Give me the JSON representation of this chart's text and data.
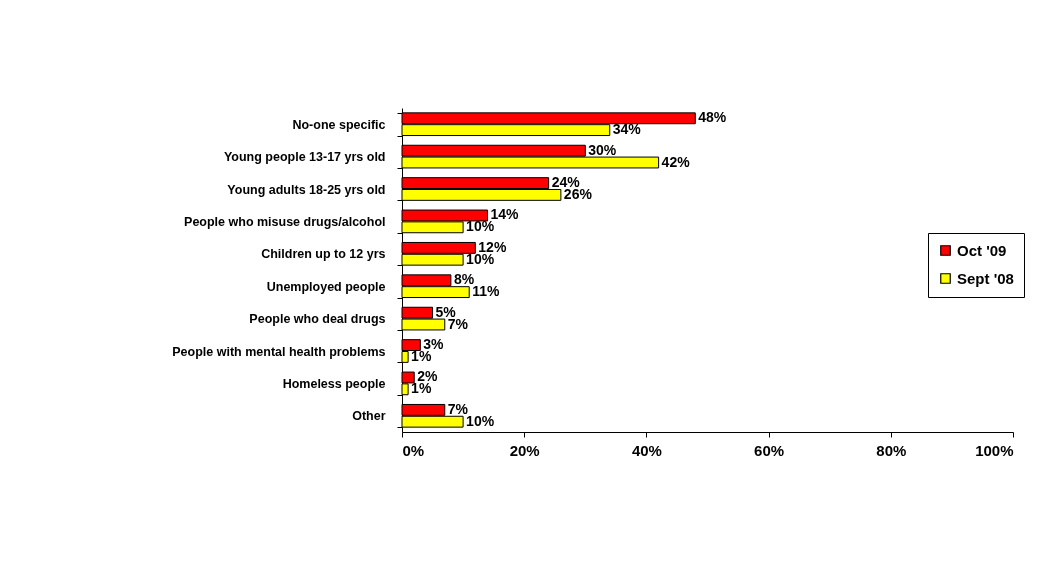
{
  "chart_data": {
    "type": "bar",
    "orientation": "horizontal",
    "categories": [
      "No-one specific",
      "Young people 13-17 yrs old",
      "Young adults 18-25 yrs old",
      "People who misuse drugs/alcohol",
      "Children up to 12 yrs",
      "Unemployed people",
      "People who deal drugs",
      "People with mental health problems",
      "Homeless people",
      "Other"
    ],
    "series": [
      {
        "name": "Oct '09",
        "color": "#ff0000",
        "values": [
          48,
          30,
          24,
          14,
          12,
          8,
          5,
          3,
          2,
          7
        ],
        "value_labels": [
          "48%",
          "30%",
          "24%",
          "14%",
          "12%",
          "8%",
          "5%",
          "3%",
          "2%",
          "7%"
        ]
      },
      {
        "name": "Sept '08",
        "color": "#ffff00",
        "values": [
          34,
          42,
          26,
          10,
          10,
          11,
          7,
          1,
          1,
          10
        ],
        "value_labels": [
          "34%",
          "42%",
          "26%",
          "10%",
          "10%",
          "11%",
          "7%",
          "1%",
          "1%",
          "10%"
        ]
      }
    ],
    "xlim": [
      0,
      100
    ],
    "xticks": [
      {
        "value": 0,
        "label": "0%"
      },
      {
        "value": 20,
        "label": "20%"
      },
      {
        "value": 40,
        "label": "40%"
      },
      {
        "value": 60,
        "label": "60%"
      },
      {
        "value": 80,
        "label": "80%"
      },
      {
        "value": 100,
        "label": "100%"
      }
    ],
    "legend": "right"
  }
}
